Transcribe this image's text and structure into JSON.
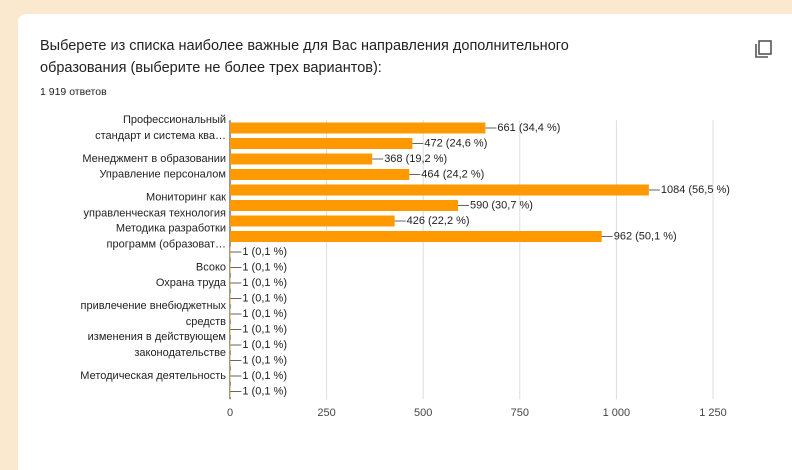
{
  "chart_data": {
    "type": "hbar",
    "title": [
      "Выберете из списка наиболее важные для Вас направления дополнительного",
      "образования (выберите не более трех вариантов):"
    ],
    "subtitle": "1 919 ответов",
    "categories": [
      "Профессиональный\nстандарт и система ква…",
      null,
      "Менеджмент в образовании",
      "Управление персоналом",
      null,
      "Мониторинг как\nуправленческая технология",
      null,
      "Методика разработки\nпрограмм (образоват…",
      null,
      "Всоко",
      "Охрана труда",
      null,
      "привлечение внебюджетных\nсредств",
      null,
      "изменения в действующем\nзаконодательстве",
      null,
      "Методическая деятельность",
      null
    ],
    "values": [
      661,
      472,
      368,
      464,
      1084,
      590,
      426,
      962,
      1,
      1,
      1,
      1,
      1,
      1,
      1,
      1,
      1,
      1
    ],
    "value_labels": [
      "661 (34,4 %)",
      "472 (24,6 %)",
      "368 (19,2 %)",
      "464 (24,2 %)",
      "1084 (56,5 %)",
      "590 (30,7 %)",
      "426 (22,2 %)",
      "962 (50,1 %)",
      "1 (0,1 %)",
      "1 (0,1 %)",
      "1 (0,1 %)",
      "1 (0,1 %)",
      "1 (0,1 %)",
      "1 (0,1 %)",
      "1 (0,1 %)",
      "1 (0,1 %)",
      "1 (0,1 %)",
      "1 (0,1 %)"
    ],
    "color": "#ff9900",
    "xlim": [
      0,
      1250
    ],
    "xticks": [
      0,
      250,
      500,
      750,
      {
        "value": 1000,
        "label": "1 000"
      },
      {
        "value": 1250,
        "label": "1 250"
      }
    ],
    "grid": true
  }
}
